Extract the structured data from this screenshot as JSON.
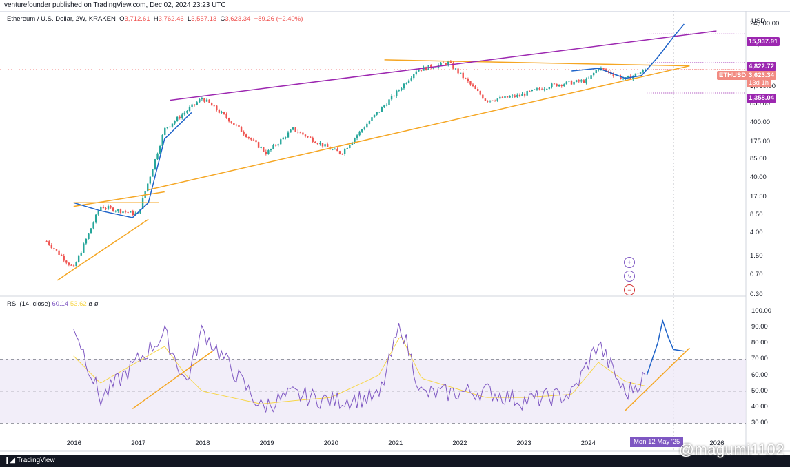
{
  "header": {
    "publisher_line": "venturefounder published on TradingView.com, Dec 02, 2024 23:23 UTC"
  },
  "legend": {
    "symbol": "Ethereum / U.S. Dollar, 2W, KRAKEN",
    "o_label": "O",
    "o_value": "3,712.61",
    "h_label": "H",
    "h_value": "3,762.46",
    "l_label": "L",
    "l_value": "3,557.13",
    "c_label": "C",
    "c_value": "3,623.34",
    "change": "−89.26 (−2.40%)"
  },
  "rsi_legend": {
    "label": "RSI (14, close)",
    "rsi_value": "60.14",
    "ma_value": "53.62",
    "extra1": "ø",
    "extra2": "ø"
  },
  "price_axis": {
    "currency": "USD",
    "ticks": [
      "24,000.00",
      "10,000.00",
      "1,750.00",
      "850.00",
      "400.00",
      "175.00",
      "85.00",
      "40.00",
      "17.50",
      "8.50",
      "4.00",
      "1.50",
      "0.70",
      "0.30"
    ]
  },
  "price_tags": {
    "top": "15,937.91",
    "resistance": "4,822.72",
    "symbol": "ETHUSD",
    "last": "3,623.34",
    "countdown": "13d 1h",
    "support": "1,358.04"
  },
  "rsi_axis": {
    "ticks": [
      "100.00",
      "90.00",
      "80.00",
      "70.00",
      "60.00",
      "50.00",
      "40.00",
      "30.00"
    ]
  },
  "time_axis": {
    "labels": [
      "2016",
      "2017",
      "2018",
      "2019",
      "2020",
      "2021",
      "2022",
      "2023",
      "2024",
      "2026"
    ],
    "crosshair_date": "Mon 12 May '25"
  },
  "footer": {
    "brand": "TradingView",
    "watermark": "@magumi1102"
  },
  "colors": {
    "up": "#26a69a",
    "down": "#ef5350",
    "wedge": "#f5a623",
    "channel": "#9c27b0",
    "projection": "#1e63c9",
    "rsi": "#7e57c2",
    "rsi_ma": "#f7d64a",
    "rsi_band": "#ede7f6"
  },
  "icons": [
    "add-icon",
    "lightning-icon",
    "flag-us-icon"
  ],
  "chart_data": [
    {
      "type": "candlestick",
      "title": "Ethereum / U.S. Dollar, 2W, KRAKEN",
      "yscale": "log",
      "ylim": [
        0.3,
        24000
      ],
      "x": [
        "2015-08",
        "2016-01",
        "2016-06",
        "2017-01",
        "2017-06",
        "2018-01",
        "2018-06",
        "2019-01",
        "2019-06",
        "2020-01",
        "2020-03",
        "2020-08",
        "2021-01",
        "2021-05",
        "2021-11",
        "2022-06",
        "2022-12",
        "2023-06",
        "2024-01",
        "2024-03",
        "2024-08",
        "2024-12",
        "2025-05"
      ],
      "close": [
        2.8,
        0.9,
        12,
        8.5,
        300,
        1100,
        450,
        110,
        300,
        130,
        110,
        400,
        1300,
        3500,
        4800,
        1000,
        1200,
        1850,
        2300,
        3900,
        2400,
        3623,
        15937
      ],
      "annotations": {
        "upper_channel_level": 15937.91,
        "resistance": 4822.72,
        "support": 1358.04,
        "last": 3623.34
      }
    },
    {
      "type": "line",
      "title": "RSI (14, close)",
      "ylim": [
        25,
        105
      ],
      "series": [
        {
          "name": "RSI",
          "values": [
            92,
            45,
            86,
            55,
            88,
            40,
            48,
            44,
            46,
            92,
            48,
            50,
            44,
            48,
            80,
            48,
            60
          ]
        },
        {
          "name": "RSI MA",
          "values": [
            72,
            55,
            78,
            60,
            50,
            42,
            44,
            46,
            60,
            85,
            58,
            46,
            46,
            48,
            68,
            56,
            53
          ]
        }
      ],
      "x": [
        "2016-01",
        "2016-06",
        "2017-06",
        "2017-10",
        "2018-01",
        "2018-12",
        "2019-06",
        "2020-01",
        "2020-10",
        "2021-02",
        "2021-06",
        "2022-06",
        "2023-01",
        "2023-10",
        "2024-03",
        "2024-08",
        "2024-12"
      ],
      "bands": [
        30,
        50,
        70
      ]
    }
  ]
}
